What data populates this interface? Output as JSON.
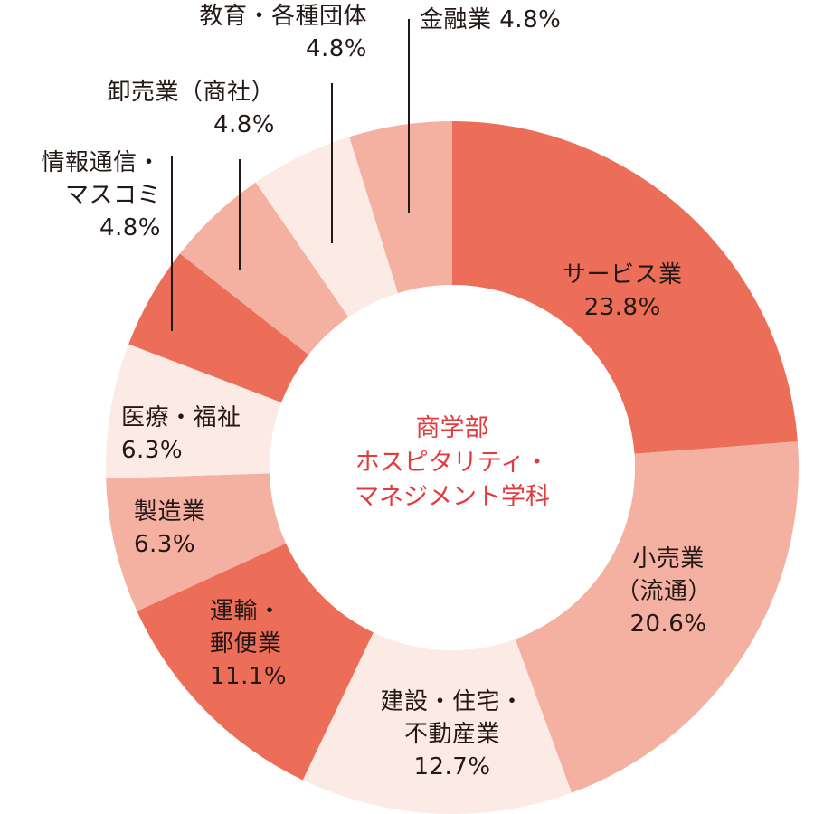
{
  "chart_data": {
    "type": "pie",
    "variant": "donut",
    "title": "商学部 ホスピタリティ・マネジメント学科",
    "center_label_lines": [
      "商学部",
      "ホスピタリティ・",
      "マネジメント学科"
    ],
    "unit": "%",
    "start_angle_deg": 0,
    "direction": "clockwise",
    "slices": [
      {
        "name": "サービス業",
        "value": 23.8,
        "color": "#EC6E58",
        "label_lines": [
          "サービス業",
          "23.8%"
        ]
      },
      {
        "name": "小売業（流通）",
        "value": 20.6,
        "color": "#F4B0A1",
        "label_lines": [
          "小売業",
          "（流通）",
          "20.6%"
        ]
      },
      {
        "name": "建設・住宅・不動産業",
        "value": 12.7,
        "color": "#FCEAE4",
        "label_lines": [
          "建設・住宅・",
          "不動産業",
          "12.7%"
        ]
      },
      {
        "name": "運輸・郵便業",
        "value": 11.1,
        "color": "#EC6E58",
        "label_lines": [
          "運輸・",
          "郵便業",
          "11.1%"
        ]
      },
      {
        "name": "製造業",
        "value": 6.3,
        "color": "#F4B0A1",
        "label_lines": [
          "製造業",
          "6.3%"
        ]
      },
      {
        "name": "医療・福祉",
        "value": 6.3,
        "color": "#FCEAE4",
        "label_lines": [
          "医療・福祉",
          "6.3%"
        ]
      },
      {
        "name": "情報通信・マスコミ",
        "value": 4.8,
        "color": "#EC6E58",
        "label_lines": [
          "情報通信・",
          "マスコミ",
          "4.8%"
        ]
      },
      {
        "name": "卸売業（商社）",
        "value": 4.8,
        "color": "#F4B0A1",
        "label_lines": [
          "卸売業（商社）",
          "4.8%"
        ]
      },
      {
        "name": "教育・各種団体",
        "value": 4.8,
        "color": "#FCEAE4",
        "label_lines": [
          "教育・各種団体",
          "4.8%"
        ]
      },
      {
        "name": "金融業",
        "value": 4.8,
        "color": "#F4B0A1",
        "label_lines": [
          "金融業 4.8%"
        ]
      }
    ],
    "legend": "none (inline labels)",
    "center_text_color": "#E33B3B"
  }
}
